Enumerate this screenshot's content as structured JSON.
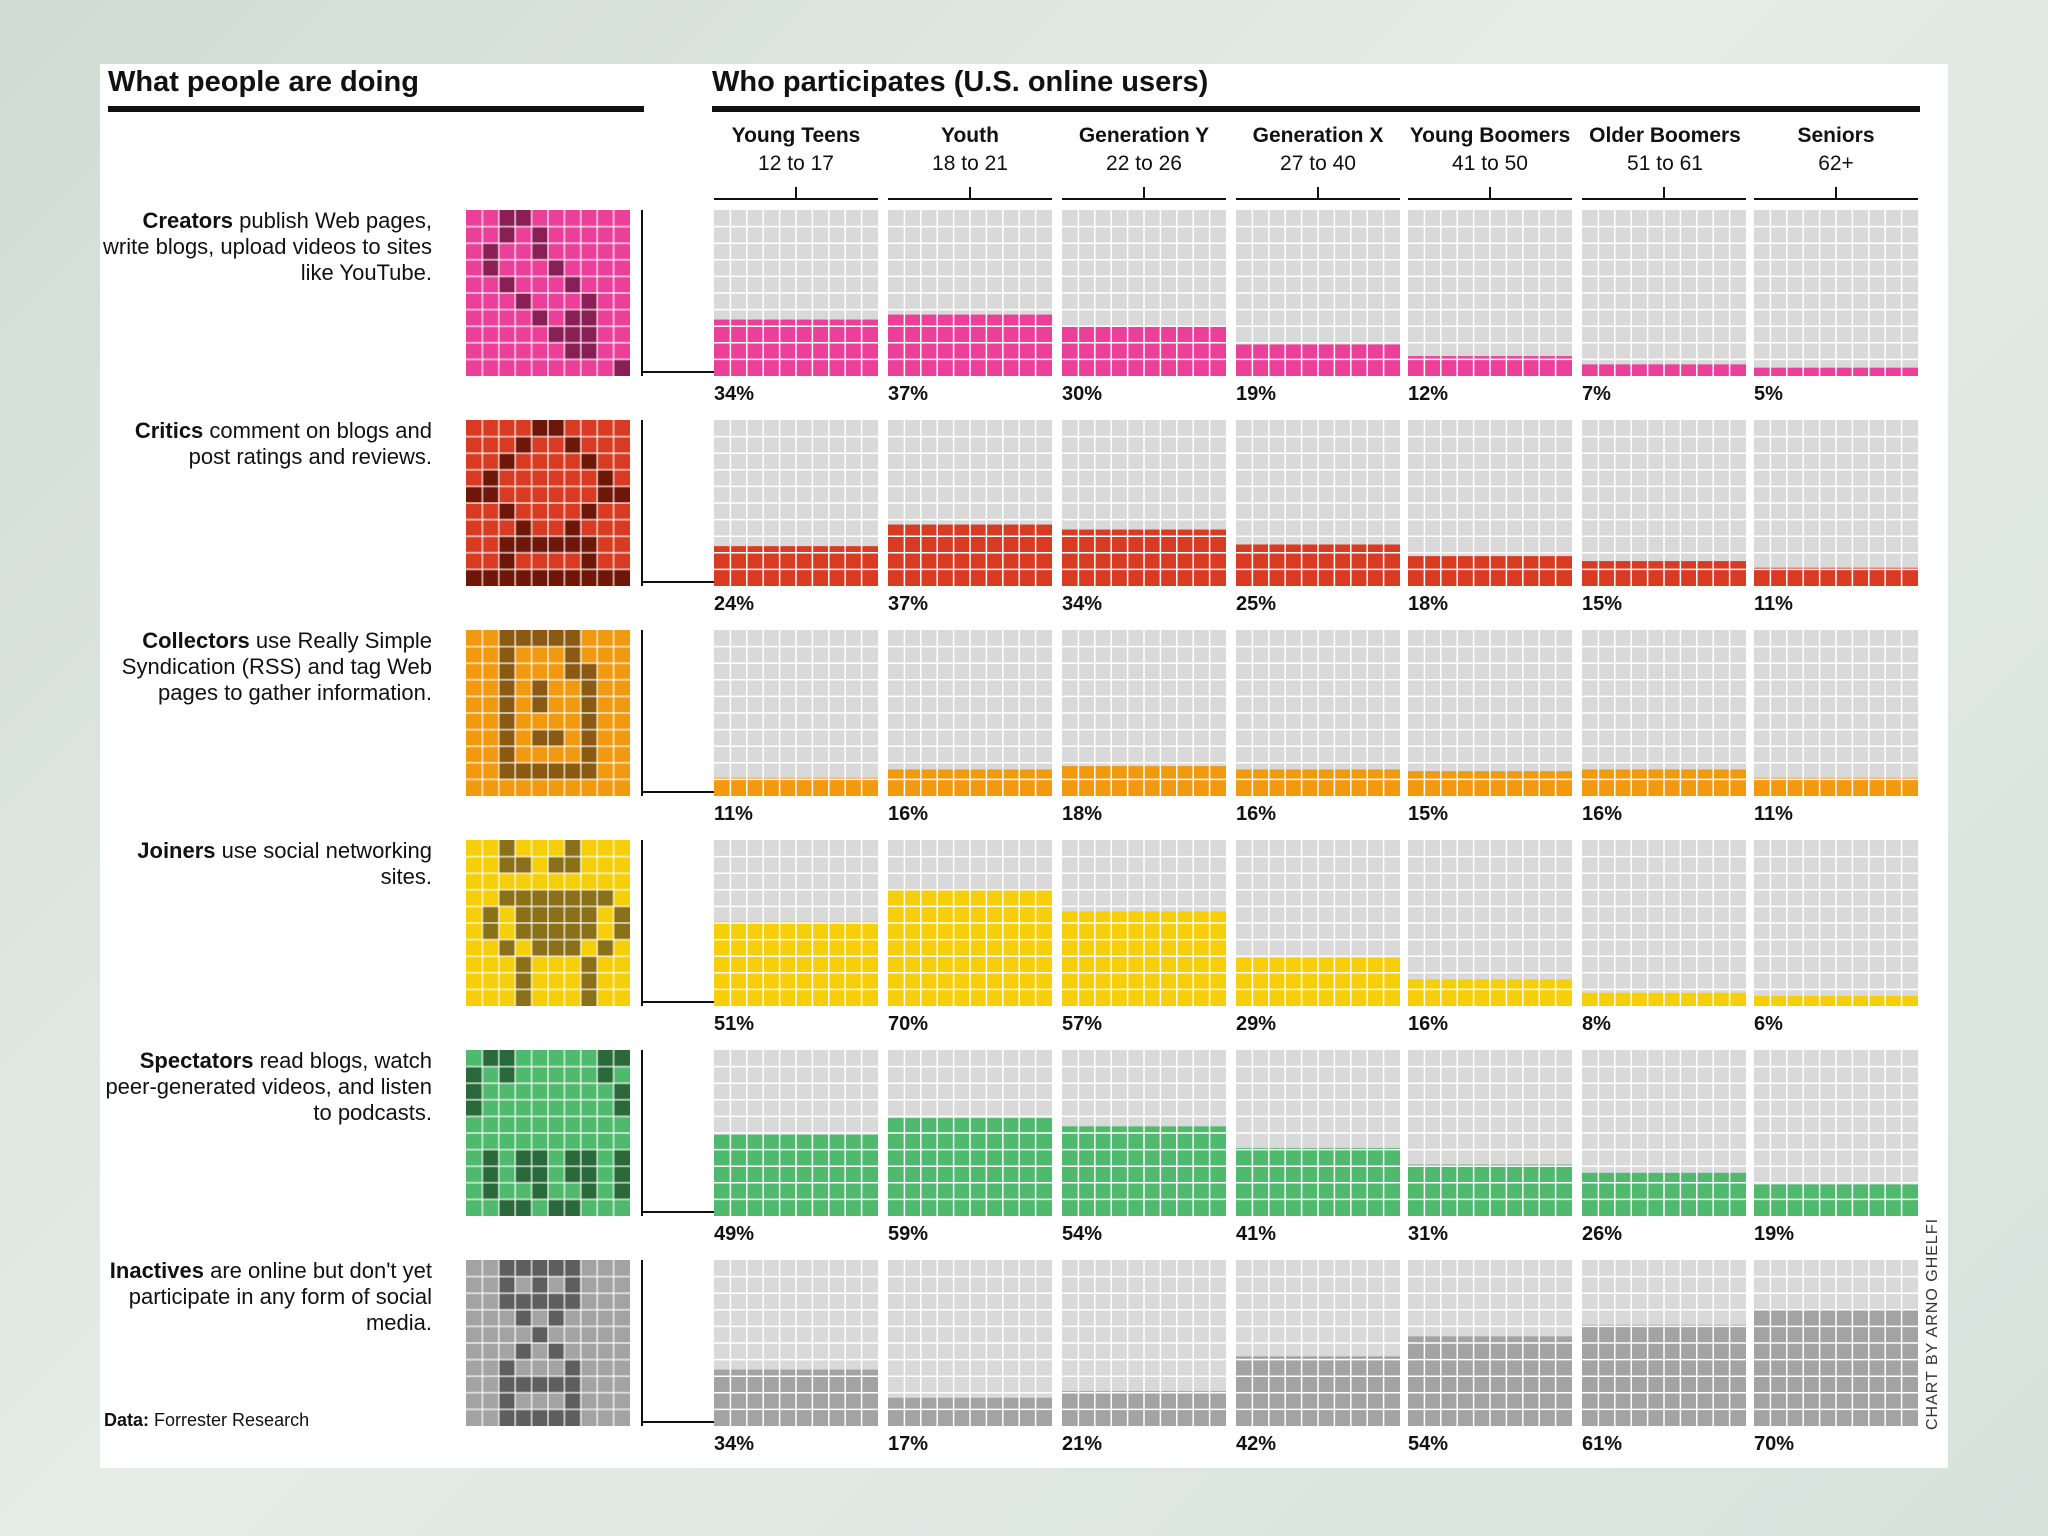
{
  "titles": {
    "left": "What people are doing",
    "right": "Who participates (U.S. online users)"
  },
  "age_groups": [
    {
      "name": "Young Teens",
      "range": "12 to 17"
    },
    {
      "name": "Youth",
      "range": "18 to 21"
    },
    {
      "name": "Generation Y",
      "range": "22 to 26"
    },
    {
      "name": "Generation X",
      "range": "27 to 40"
    },
    {
      "name": "Young Boomers",
      "range": "41 to 50"
    },
    {
      "name": "Older Boomers",
      "range": "51 to 61"
    },
    {
      "name": "Seniors",
      "range": "62+"
    }
  ],
  "categories": [
    {
      "key": "creators",
      "bold": "Creators",
      "rest": "publish Web pages, write blogs, upload videos to sites like YouTube."
    },
    {
      "key": "critics",
      "bold": "Critics",
      "rest": "comment on blogs and post ratings and reviews."
    },
    {
      "key": "collectors",
      "bold": "Collectors",
      "rest": "use Really Simple Syndication (RSS) and tag Web pages to gather information."
    },
    {
      "key": "joiners",
      "bold": "Joiners",
      "rest": "use social networking sites."
    },
    {
      "key": "spectators",
      "bold": "Spectators",
      "rest": "read blogs, watch peer-generated videos, and listen to podcasts."
    },
    {
      "key": "inactives",
      "bold": "Inactives",
      "rest": "are online but don't yet participate in any form of social media."
    }
  ],
  "source": {
    "label": "Data:",
    "value": "Forrester Research"
  },
  "credit": "CHART BY ARNO GHELFI",
  "colors": {
    "creators": "#ec3f9a",
    "creators_dark": "#8a1f55",
    "critics": "#d83a22",
    "critics_dark": "#6e1608",
    "collectors": "#f29a0f",
    "collectors_dark": "#8a5a12",
    "joiners": "#f6cf0a",
    "joiners_dark": "#8a7018",
    "spectators": "#4fba6e",
    "spectators_dark": "#2a6a3a",
    "inactives": "#a3a3a3",
    "inactives_dark": "#5e5e5e",
    "grid_bg": "#d9d9d9"
  },
  "chart_data": {
    "type": "heatmap",
    "title": "Who participates (U.S. online users)",
    "categories": [
      "Young Teens 12 to 17",
      "Youth 18 to 21",
      "Generation Y 22 to 26",
      "Generation X 27 to 40",
      "Young Boomers 41 to 50",
      "Older Boomers 51 to 61",
      "Seniors 62+"
    ],
    "unit": "percent of U.S. online users",
    "ylim": [
      0,
      100
    ],
    "series": [
      {
        "name": "Creators",
        "values": [
          34,
          37,
          30,
          19,
          12,
          7,
          5
        ],
        "labels": [
          "34%",
          "37%",
          "30%",
          "19%",
          "12%",
          "7%",
          "5%"
        ]
      },
      {
        "name": "Critics",
        "values": [
          24,
          37,
          34,
          25,
          18,
          15,
          11
        ],
        "labels": [
          "24%",
          "37%",
          "34%",
          "25%",
          "18%",
          "15%",
          "11%"
        ]
      },
      {
        "name": "Collectors",
        "values": [
          11,
          16,
          18,
          16,
          15,
          16,
          11
        ],
        "labels": [
          "11%",
          "16%",
          "18%",
          "16%",
          "15%",
          "16%",
          "11%"
        ]
      },
      {
        "name": "Joiners",
        "values": [
          51,
          70,
          57,
          29,
          16,
          8,
          6
        ],
        "labels": [
          "51%",
          "70%",
          "57%",
          "29%",
          "16%",
          "8%",
          "6%"
        ]
      },
      {
        "name": "Spectators",
        "values": [
          49,
          59,
          54,
          41,
          31,
          26,
          19
        ],
        "labels": [
          "49%",
          "59%",
          "54%",
          "41%",
          "31%",
          "26%",
          "19%"
        ]
      },
      {
        "name": "Inactives",
        "values": [
          34,
          17,
          21,
          42,
          54,
          61,
          70
        ],
        "labels": [
          "34%",
          "17%",
          "21%",
          "42%",
          "54%",
          "61%",
          "70%"
        ]
      }
    ]
  }
}
